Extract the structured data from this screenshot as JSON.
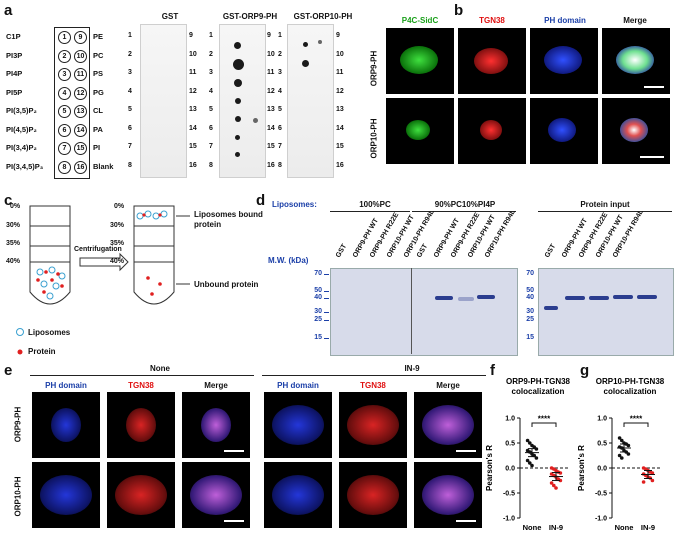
{
  "panel_letters": {
    "a": "a",
    "b": "b",
    "c": "c",
    "d": "d",
    "e": "e",
    "f": "f",
    "g": "g"
  },
  "a": {
    "strip_titles": [
      "GST",
      "GST-ORP9-PH",
      "GST-ORP10-PH"
    ],
    "left_lipids": [
      "C1P",
      "PI3P",
      "PI4P",
      "PI5P",
      "PI(3,5)P₂",
      "PI(4,5)P₂",
      "PI(3,4)P₂",
      "PI(3,4,5)P₃"
    ],
    "right_lipids": [
      "PE",
      "PC",
      "PS",
      "PG",
      "CL",
      "PA",
      "PI",
      "Blank"
    ],
    "left_circles": [
      "1",
      "2",
      "3",
      "4",
      "5",
      "6",
      "7",
      "8"
    ],
    "right_circles": [
      "9",
      "10",
      "11",
      "12",
      "13",
      "14",
      "15",
      "16"
    ]
  },
  "b": {
    "headers": [
      "P4C-SidC",
      "TGN38",
      "PH domain",
      "Merge"
    ],
    "rows": [
      "ORP9-PH",
      "ORP10-PH"
    ]
  },
  "c": {
    "gradient": [
      "0%",
      "30%",
      "35%",
      "40%"
    ],
    "gradient_after": [
      "0%",
      "30%",
      "35%",
      "40%"
    ],
    "arrow_label": "Centrifugation",
    "bound_label": "Liposomes bound protein",
    "unbound_label": "Unbound protein",
    "legend_liposomes": "Liposomes",
    "legend_protein": "Protein"
  },
  "d": {
    "liposomes_label": "Liposomes:",
    "group_titles": [
      "100%PC",
      "90%PC10%PI4P",
      "Protein input"
    ],
    "lane_labels": [
      "GST",
      "ORP9-PH WT",
      "ORP9-PH R22E",
      "ORP10-PH WT",
      "ORP10-PH R94L"
    ],
    "mw_label": "M.W. (kDa)",
    "mw_ticks": [
      "70",
      "50",
      "40",
      "30",
      "25",
      "15"
    ]
  },
  "e": {
    "conditions": [
      "None",
      "IN-9"
    ],
    "headers": [
      "PH domain",
      "TGN38",
      "Merge",
      "PH domain",
      "TGN38",
      "Merge"
    ],
    "rows": [
      "ORP9-PH",
      "ORP10-PH"
    ]
  },
  "chart_data": [
    {
      "type": "scatter",
      "title": "ORP9-PH-TGN38 colocalization",
      "ylabel": "Pearson's R",
      "categories": [
        "None",
        "IN-9"
      ],
      "ylim": [
        -1.0,
        1.0
      ],
      "yticks": [
        "1.0",
        "0.5",
        "0.0",
        "-0.5",
        "-1.0"
      ],
      "significance": "****",
      "series": [
        {
          "values": [
            0.55,
            0.5,
            0.45,
            0.42,
            0.38,
            0.35,
            0.32,
            0.28,
            0.25,
            0.2,
            0.15,
            0.1,
            0.05
          ]
        },
        {
          "values": [
            0.0,
            -0.02,
            -0.05,
            -0.08,
            -0.1,
            -0.12,
            -0.15,
            -0.18,
            -0.22,
            -0.25,
            -0.3,
            -0.35,
            -0.4
          ]
        }
      ],
      "colors": [
        "#111111",
        "#e02020"
      ]
    },
    {
      "type": "scatter",
      "title": "ORP10-PH-TGN38 colocalization",
      "ylabel": "Pearson's R",
      "categories": [
        "None",
        "IN-9"
      ],
      "ylim": [
        -1.0,
        1.0
      ],
      "yticks": [
        "1.0",
        "0.5",
        "0.0",
        "-0.5",
        "-1.0"
      ],
      "significance": "****",
      "series": [
        {
          "values": [
            0.6,
            0.55,
            0.5,
            0.48,
            0.45,
            0.42,
            0.4,
            0.35,
            0.32,
            0.28,
            0.25,
            0.2
          ]
        },
        {
          "values": [
            0.0,
            -0.02,
            -0.05,
            -0.08,
            -0.1,
            -0.12,
            -0.15,
            -0.18,
            -0.2,
            -0.25,
            -0.28
          ]
        }
      ],
      "colors": [
        "#111111",
        "#e02020"
      ]
    }
  ]
}
